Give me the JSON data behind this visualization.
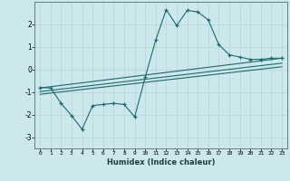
{
  "xlabel": "Humidex (Indice chaleur)",
  "background_color": "#cce8ec",
  "grid_color": "#b8d4d8",
  "line_color": "#1a6b6b",
  "xlim": [
    -0.5,
    23.5
  ],
  "ylim": [
    -3.5,
    3.0
  ],
  "xticks": [
    0,
    1,
    2,
    3,
    4,
    5,
    6,
    7,
    8,
    9,
    10,
    11,
    12,
    13,
    14,
    15,
    16,
    17,
    18,
    19,
    20,
    21,
    22,
    23
  ],
  "yticks": [
    -3,
    -2,
    -1,
    0,
    1,
    2
  ],
  "series1_x": [
    0,
    1,
    2,
    3,
    4,
    5,
    6,
    7,
    8,
    9,
    10,
    11,
    12,
    13,
    14,
    15,
    16,
    17,
    18,
    19,
    20,
    21,
    22,
    23
  ],
  "series1_y": [
    -0.8,
    -0.82,
    -1.5,
    -2.05,
    -2.65,
    -1.6,
    -1.55,
    -1.5,
    -1.55,
    -2.1,
    -0.35,
    1.3,
    2.65,
    1.95,
    2.62,
    2.55,
    2.2,
    1.1,
    0.65,
    0.55,
    0.45,
    0.45,
    0.5,
    0.5
  ],
  "series2_x": [
    0,
    23
  ],
  "series2_y": [
    -0.82,
    0.5
  ],
  "series3_x": [
    0,
    23
  ],
  "series3_y": [
    -0.98,
    0.28
  ],
  "series4_x": [
    0,
    23
  ],
  "series4_y": [
    -1.1,
    0.12
  ]
}
